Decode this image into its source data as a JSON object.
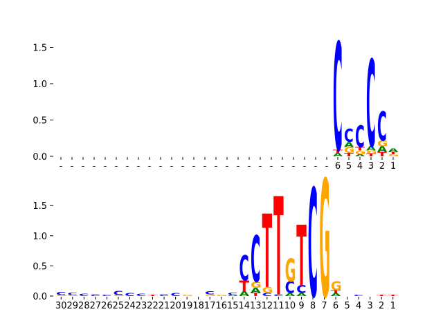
{
  "colors": {
    "A": "#008000",
    "C": "#0000ff",
    "G": "#ffa500",
    "T": "#ff0000"
  },
  "chart_data": [
    {
      "type": "sequence-logo",
      "title": "",
      "xlabel": "",
      "ylabel": "",
      "ylim": [
        0,
        1.6
      ],
      "y_ticks": [
        "0.0",
        "0.5",
        "1.0",
        "1.5"
      ],
      "x_tick_labels": [
        "-",
        "-",
        "-",
        "-",
        "-",
        "-",
        "-",
        "-",
        "-",
        "-",
        "-",
        "-",
        "-",
        "-",
        "-",
        "-",
        "-",
        "-",
        "-",
        "-",
        "-",
        "-",
        "-",
        "-",
        "-",
        "6",
        "5",
        "4",
        "3",
        "2",
        "1"
      ],
      "positions": [
        {
          "x": "6",
          "letters": [
            {
              "b": "A",
              "h": 0.05
            },
            {
              "b": "T",
              "h": 0.04
            },
            {
              "b": "C",
              "h": 1.49
            }
          ]
        },
        {
          "x": "5",
          "letters": [
            {
              "b": "T",
              "h": 0.05
            },
            {
              "b": "G",
              "h": 0.08
            },
            {
              "b": "A",
              "h": 0.07
            },
            {
              "b": "C",
              "h": 0.18
            }
          ]
        },
        {
          "x": "4",
          "letters": [
            {
              "b": "A",
              "h": 0.03
            },
            {
              "b": "G",
              "h": 0.05
            },
            {
              "b": "T",
              "h": 0.05
            },
            {
              "b": "C",
              "h": 0.3
            }
          ]
        },
        {
          "x": "3",
          "letters": [
            {
              "b": "T",
              "h": 0.04
            },
            {
              "b": "G",
              "h": 0.04
            },
            {
              "b": "A",
              "h": 0.06
            },
            {
              "b": "C",
              "h": 1.2
            }
          ]
        },
        {
          "x": "2",
          "letters": [
            {
              "b": "T",
              "h": 0.06
            },
            {
              "b": "A",
              "h": 0.08
            },
            {
              "b": "G",
              "h": 0.08
            },
            {
              "b": "C",
              "h": 0.4
            }
          ]
        },
        {
          "x": "1",
          "letters": [
            {
              "b": "G",
              "h": 0.03
            },
            {
              "b": "T",
              "h": 0.03
            },
            {
              "b": "A",
              "h": 0.05
            }
          ]
        }
      ]
    },
    {
      "type": "sequence-logo",
      "title": "",
      "xlabel": "",
      "ylabel": "",
      "ylim": [
        0,
        1.95
      ],
      "y_ticks": [
        "0.0",
        "0.5",
        "1.0",
        "1.5"
      ],
      "x_tick_labels": [
        "30",
        "29",
        "28",
        "27",
        "26",
        "25",
        "24",
        "23",
        "22",
        "21",
        "20",
        "19",
        "18",
        "17",
        "16",
        "15",
        "14",
        "13",
        "12",
        "11",
        "10",
        "9",
        "8",
        "7",
        "6",
        "5",
        "4",
        "3",
        "2",
        "1"
      ],
      "positions": [
        {
          "x": "30",
          "letters": [
            {
              "b": "G",
              "h": 0.02
            },
            {
              "b": "C",
              "h": 0.05
            }
          ]
        },
        {
          "x": "29",
          "letters": [
            {
              "b": "G",
              "h": 0.02
            },
            {
              "b": "C",
              "h": 0.04
            }
          ]
        },
        {
          "x": "28",
          "letters": [
            {
              "b": "C",
              "h": 0.04
            }
          ]
        },
        {
          "x": "27",
          "letters": [
            {
              "b": "C",
              "h": 0.03
            }
          ]
        },
        {
          "x": "26",
          "letters": [
            {
              "b": "C",
              "h": 0.02
            }
          ]
        },
        {
          "x": "25",
          "letters": [
            {
              "b": "G",
              "h": 0.02
            },
            {
              "b": "C",
              "h": 0.07
            }
          ]
        },
        {
          "x": "24",
          "letters": [
            {
              "b": "C",
              "h": 0.05
            }
          ]
        },
        {
          "x": "23",
          "letters": [
            {
              "b": "C",
              "h": 0.04
            }
          ]
        },
        {
          "x": "22",
          "letters": [
            {
              "b": "T",
              "h": 0.02
            }
          ]
        },
        {
          "x": "21",
          "letters": [
            {
              "b": "C",
              "h": 0.03
            }
          ]
        },
        {
          "x": "20",
          "letters": [
            {
              "b": "C",
              "h": 0.05
            }
          ]
        },
        {
          "x": "19",
          "letters": [
            {
              "b": "G",
              "h": 0.02
            }
          ]
        },
        {
          "x": "18",
          "letters": []
        },
        {
          "x": "17",
          "letters": [
            {
              "b": "G",
              "h": 0.03
            },
            {
              "b": "C",
              "h": 0.05
            }
          ]
        },
        {
          "x": "16",
          "letters": [
            {
              "b": "G",
              "h": 0.02
            }
          ]
        },
        {
          "x": "15",
          "letters": [
            {
              "b": "A",
              "h": 0.02
            },
            {
              "b": "C",
              "h": 0.04
            }
          ]
        },
        {
          "x": "14",
          "letters": [
            {
              "b": "A",
              "h": 0.08
            },
            {
              "b": "T",
              "h": 0.18
            },
            {
              "b": "C",
              "h": 0.42
            }
          ]
        },
        {
          "x": "13",
          "letters": [
            {
              "b": "T",
              "h": 0.06
            },
            {
              "b": "A",
              "h": 0.08
            },
            {
              "b": "G",
              "h": 0.1
            },
            {
              "b": "C",
              "h": 0.77
            }
          ]
        },
        {
          "x": "12",
          "letters": [
            {
              "b": "C",
              "h": 0.05
            },
            {
              "b": "G",
              "h": 0.1
            },
            {
              "b": "T",
              "h": 1.22
            }
          ]
        },
        {
          "x": "11",
          "letters": [
            {
              "b": "C",
              "h": 0.03
            },
            {
              "b": "T",
              "h": 1.63
            }
          ]
        },
        {
          "x": "10",
          "letters": [
            {
              "b": "A",
              "h": 0.05
            },
            {
              "b": "C",
              "h": 0.19
            },
            {
              "b": "G",
              "h": 0.38
            }
          ]
        },
        {
          "x": "9",
          "letters": [
            {
              "b": "A",
              "h": 0.05
            },
            {
              "b": "C",
              "h": 0.13
            },
            {
              "b": "T",
              "h": 1.01
            }
          ]
        },
        {
          "x": "8",
          "letters": [
            {
              "b": "C",
              "h": 1.8
            }
          ]
        },
        {
          "x": "7",
          "letters": [
            {
              "b": "G",
              "h": 1.95
            }
          ]
        },
        {
          "x": "6",
          "letters": [
            {
              "b": "A",
              "h": 0.05
            },
            {
              "b": "T",
              "h": 0.05
            },
            {
              "b": "G",
              "h": 0.15
            }
          ]
        },
        {
          "x": "5",
          "letters": []
        },
        {
          "x": "4",
          "letters": [
            {
              "b": "C",
              "h": 0.02
            }
          ]
        },
        {
          "x": "3",
          "letters": []
        },
        {
          "x": "2",
          "letters": [
            {
              "b": "T",
              "h": 0.02
            }
          ]
        },
        {
          "x": "1",
          "letters": [
            {
              "b": "T",
              "h": 0.02
            }
          ]
        }
      ]
    }
  ]
}
